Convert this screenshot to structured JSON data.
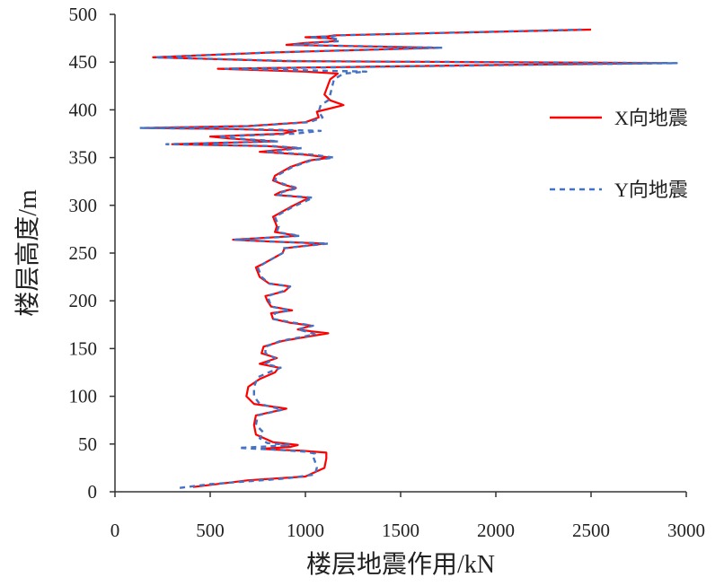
{
  "chart_data": {
    "type": "line",
    "title": "",
    "xlabel": "楼层地震作用/kN",
    "ylabel": "楼层高度/m",
    "xlim": [
      0,
      3000
    ],
    "ylim": [
      0,
      500
    ],
    "xticks": [
      "0",
      "500",
      "1000",
      "1500",
      "2000",
      "2500",
      "3000"
    ],
    "yticks": [
      "0",
      "50",
      "100",
      "150",
      "200",
      "250",
      "300",
      "350",
      "400",
      "450",
      "500"
    ],
    "grid": false,
    "legend_position": "right",
    "series": [
      {
        "name": "X向地震",
        "color": "#ff0000",
        "dash": "solid",
        "points": [
          [
            410,
            5
          ],
          [
            700,
            12
          ],
          [
            1000,
            16
          ],
          [
            1100,
            25
          ],
          [
            1110,
            35
          ],
          [
            1110,
            41
          ],
          [
            980,
            43
          ],
          [
            850,
            44
          ],
          [
            770,
            45
          ],
          [
            920,
            47
          ],
          [
            960,
            49
          ],
          [
            830,
            52
          ],
          [
            740,
            60
          ],
          [
            730,
            70
          ],
          [
            740,
            80
          ],
          [
            900,
            87
          ],
          [
            730,
            92
          ],
          [
            690,
            100
          ],
          [
            700,
            110
          ],
          [
            760,
            118
          ],
          [
            840,
            125
          ],
          [
            860,
            130
          ],
          [
            760,
            134
          ],
          [
            850,
            140
          ],
          [
            770,
            145
          ],
          [
            780,
            152
          ],
          [
            880,
            158
          ],
          [
            1000,
            162
          ],
          [
            1120,
            166
          ],
          [
            1030,
            168
          ],
          [
            960,
            170
          ],
          [
            1030,
            174
          ],
          [
            920,
            177
          ],
          [
            830,
            181
          ],
          [
            820,
            187
          ],
          [
            930,
            190
          ],
          [
            820,
            194
          ],
          [
            800,
            200
          ],
          [
            790,
            205
          ],
          [
            890,
            210
          ],
          [
            920,
            215
          ],
          [
            810,
            218
          ],
          [
            760,
            225
          ],
          [
            750,
            230
          ],
          [
            740,
            235
          ],
          [
            790,
            240
          ],
          [
            880,
            250
          ],
          [
            890,
            255
          ],
          [
            1100,
            260
          ],
          [
            820,
            262
          ],
          [
            620,
            264
          ],
          [
            960,
            268
          ],
          [
            840,
            272
          ],
          [
            850,
            278
          ],
          [
            840,
            283
          ],
          [
            830,
            288
          ],
          [
            920,
            298
          ],
          [
            1020,
            308
          ],
          [
            840,
            311
          ],
          [
            870,
            314
          ],
          [
            950,
            318
          ],
          [
            880,
            322
          ],
          [
            830,
            326
          ],
          [
            840,
            331
          ],
          [
            920,
            340
          ],
          [
            1020,
            347
          ],
          [
            1130,
            350
          ],
          [
            1000,
            353
          ],
          [
            760,
            356
          ],
          [
            960,
            360
          ],
          [
            800,
            362
          ],
          [
            300,
            364
          ],
          [
            830,
            367
          ],
          [
            600,
            370
          ],
          [
            500,
            372
          ],
          [
            880,
            375
          ],
          [
            950,
            378
          ],
          [
            600,
            380
          ],
          [
            160,
            381
          ],
          [
            700,
            383
          ],
          [
            1000,
            387
          ],
          [
            1070,
            392
          ],
          [
            1060,
            398
          ],
          [
            1200,
            405
          ],
          [
            1130,
            410
          ],
          [
            1100,
            416
          ],
          [
            1130,
            432
          ],
          [
            1170,
            438
          ],
          [
            1000,
            440
          ],
          [
            540,
            443
          ],
          [
            2000,
            447
          ],
          [
            2900,
            449
          ],
          [
            900,
            451
          ],
          [
            200,
            455
          ],
          [
            800,
            460
          ],
          [
            1700,
            465
          ],
          [
            900,
            468
          ],
          [
            1000,
            470
          ],
          [
            1160,
            472
          ],
          [
            1150,
            474
          ],
          [
            1120,
            475
          ],
          [
            1000,
            476
          ],
          [
            1120,
            477
          ],
          [
            1150,
            478
          ],
          [
            2500,
            484
          ]
        ]
      },
      {
        "name": "Y向地震",
        "color": "#4472c4",
        "dash": "6,5",
        "points": [
          [
            340,
            4
          ],
          [
            500,
            8
          ],
          [
            900,
            14
          ],
          [
            1050,
            18
          ],
          [
            1060,
            25
          ],
          [
            1050,
            32
          ],
          [
            1040,
            37
          ],
          [
            1050,
            40
          ],
          [
            1000,
            42
          ],
          [
            850,
            44
          ],
          [
            650,
            46
          ],
          [
            850,
            48
          ],
          [
            920,
            49
          ],
          [
            800,
            51
          ],
          [
            760,
            56
          ],
          [
            780,
            62
          ],
          [
            740,
            70
          ],
          [
            750,
            80
          ],
          [
            880,
            86
          ],
          [
            760,
            92
          ],
          [
            730,
            100
          ],
          [
            730,
            110
          ],
          [
            750,
            120
          ],
          [
            820,
            126
          ],
          [
            870,
            130
          ],
          [
            790,
            134
          ],
          [
            840,
            140
          ],
          [
            790,
            145
          ],
          [
            790,
            152
          ],
          [
            870,
            158
          ],
          [
            980,
            162
          ],
          [
            1050,
            165
          ],
          [
            1000,
            168
          ],
          [
            960,
            170
          ],
          [
            1040,
            174
          ],
          [
            940,
            177
          ],
          [
            830,
            181
          ],
          [
            840,
            187
          ],
          [
            920,
            190
          ],
          [
            820,
            194
          ],
          [
            810,
            200
          ],
          [
            800,
            205
          ],
          [
            880,
            210
          ],
          [
            920,
            215
          ],
          [
            810,
            218
          ],
          [
            770,
            225
          ],
          [
            760,
            230
          ],
          [
            750,
            235
          ],
          [
            790,
            240
          ],
          [
            880,
            250
          ],
          [
            880,
            255
          ],
          [
            1120,
            260
          ],
          [
            830,
            262
          ],
          [
            630,
            264
          ],
          [
            970,
            268
          ],
          [
            850,
            272
          ],
          [
            860,
            278
          ],
          [
            850,
            283
          ],
          [
            840,
            288
          ],
          [
            930,
            298
          ],
          [
            1040,
            308
          ],
          [
            850,
            311
          ],
          [
            880,
            314
          ],
          [
            960,
            318
          ],
          [
            890,
            322
          ],
          [
            840,
            326
          ],
          [
            850,
            331
          ],
          [
            930,
            340
          ],
          [
            1030,
            347
          ],
          [
            1150,
            350
          ],
          [
            1040,
            353
          ],
          [
            790,
            356
          ],
          [
            980,
            360
          ],
          [
            830,
            362
          ],
          [
            270,
            364
          ],
          [
            860,
            367
          ],
          [
            630,
            370
          ],
          [
            540,
            372
          ],
          [
            940,
            375
          ],
          [
            1080,
            378
          ],
          [
            640,
            380
          ],
          [
            130,
            381
          ],
          [
            700,
            383
          ],
          [
            1020,
            387
          ],
          [
            1090,
            392
          ],
          [
            1070,
            398
          ],
          [
            1080,
            405
          ],
          [
            1120,
            410
          ],
          [
            1130,
            416
          ],
          [
            1150,
            432
          ],
          [
            1200,
            438
          ],
          [
            1320,
            440
          ],
          [
            580,
            443
          ],
          [
            2100,
            447
          ],
          [
            2950,
            449
          ],
          [
            950,
            451
          ],
          [
            210,
            455
          ],
          [
            800,
            460
          ],
          [
            1720,
            465
          ],
          [
            940,
            468
          ],
          [
            1040,
            470
          ],
          [
            1180,
            472
          ],
          [
            1170,
            474
          ],
          [
            1140,
            475
          ],
          [
            1020,
            476
          ],
          [
            1140,
            477
          ],
          [
            1170,
            478
          ],
          [
            2450,
            484
          ]
        ]
      }
    ]
  }
}
